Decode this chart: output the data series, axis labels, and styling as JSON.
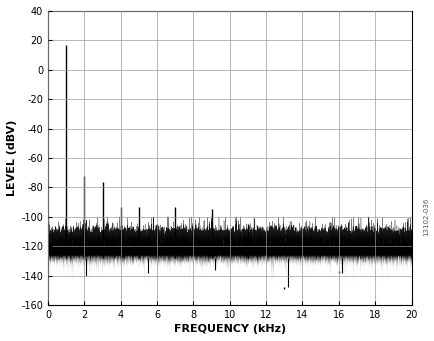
{
  "title": "",
  "xlabel": "FREQUENCY (kHz)",
  "ylabel": "LEVEL (dBV)",
  "xlim": [
    0,
    20
  ],
  "ylim": [
    -160,
    40
  ],
  "yticks": [
    -160,
    -140,
    -120,
    -100,
    -80,
    -60,
    -40,
    -20,
    0,
    20,
    40
  ],
  "xticks": [
    0,
    2,
    4,
    6,
    8,
    10,
    12,
    14,
    16,
    18,
    20
  ],
  "noise_mean": -113,
  "noise_std": 6,
  "noise_bottom": -128,
  "harmonics": [
    {
      "freq": 1.0,
      "level": 17
    },
    {
      "freq": 2.0,
      "level": -72
    },
    {
      "freq": 3.0,
      "level": -76
    },
    {
      "freq": 4.0,
      "level": -93
    },
    {
      "freq": 5.0,
      "level": -93
    },
    {
      "freq": 6.0,
      "level": -105
    },
    {
      "freq": 7.0,
      "level": -93
    },
    {
      "freq": 9.0,
      "level": -95
    },
    {
      "freq": 11.0,
      "level": -105
    },
    {
      "freq": 13.0,
      "level": -148
    },
    {
      "freq": 16.0,
      "level": -137
    }
  ],
  "deep_spikes": [
    {
      "freq": 2.1,
      "level": -140
    },
    {
      "freq": 5.5,
      "level": -138
    },
    {
      "freq": 9.2,
      "level": -136
    },
    {
      "freq": 13.2,
      "level": -148
    },
    {
      "freq": 16.2,
      "level": -138
    }
  ],
  "watermark": "13102-036",
  "line_color": "#000000",
  "bg_color": "#ffffff",
  "grid_color": "#999999",
  "figsize": [
    4.35,
    3.41
  ],
  "dpi": 100
}
